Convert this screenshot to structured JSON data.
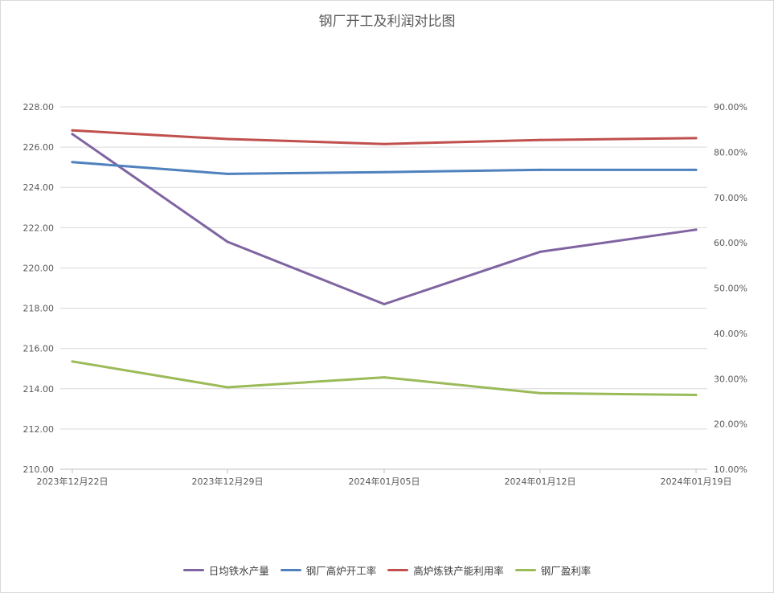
{
  "chart_data": {
    "type": "line",
    "title": "钢厂开工及利润对比图",
    "categories": [
      "2023年12月22日",
      "2023年12月29日",
      "2024年01月05日",
      "2024年01月12日",
      "2024年01月19日"
    ],
    "y_left": {
      "ylim": [
        210,
        228
      ],
      "ticks": [
        "210.00",
        "212.00",
        "214.00",
        "216.00",
        "218.00",
        "220.00",
        "222.00",
        "224.00",
        "226.00",
        "228.00"
      ]
    },
    "y_right": {
      "ylim": [
        10,
        90
      ],
      "ticks": [
        "10.00%",
        "20.00%",
        "30.00%",
        "40.00%",
        "50.00%",
        "60.00%",
        "70.00%",
        "80.00%",
        "90.00%"
      ]
    },
    "grid": true,
    "legend_position": "bottom",
    "series": [
      {
        "name": "日均铁水产量",
        "axis": "left",
        "color": "#8064A2",
        "values": [
          226.65,
          221.3,
          218.2,
          220.8,
          221.9
        ]
      },
      {
        "name": "钢厂高炉开工率",
        "axis": "right",
        "color": "#4F81BD",
        "values": [
          77.8,
          75.2,
          75.6,
          76.1,
          76.1
        ]
      },
      {
        "name": "高炉炼铁产能利用率",
        "axis": "right",
        "color": "#C0504D",
        "values": [
          84.8,
          82.9,
          81.8,
          82.7,
          83.1
        ]
      },
      {
        "name": "钢厂盈利率",
        "axis": "right",
        "color": "#9BBB59",
        "values": [
          33.8,
          28.1,
          30.3,
          26.8,
          26.4
        ]
      }
    ]
  }
}
